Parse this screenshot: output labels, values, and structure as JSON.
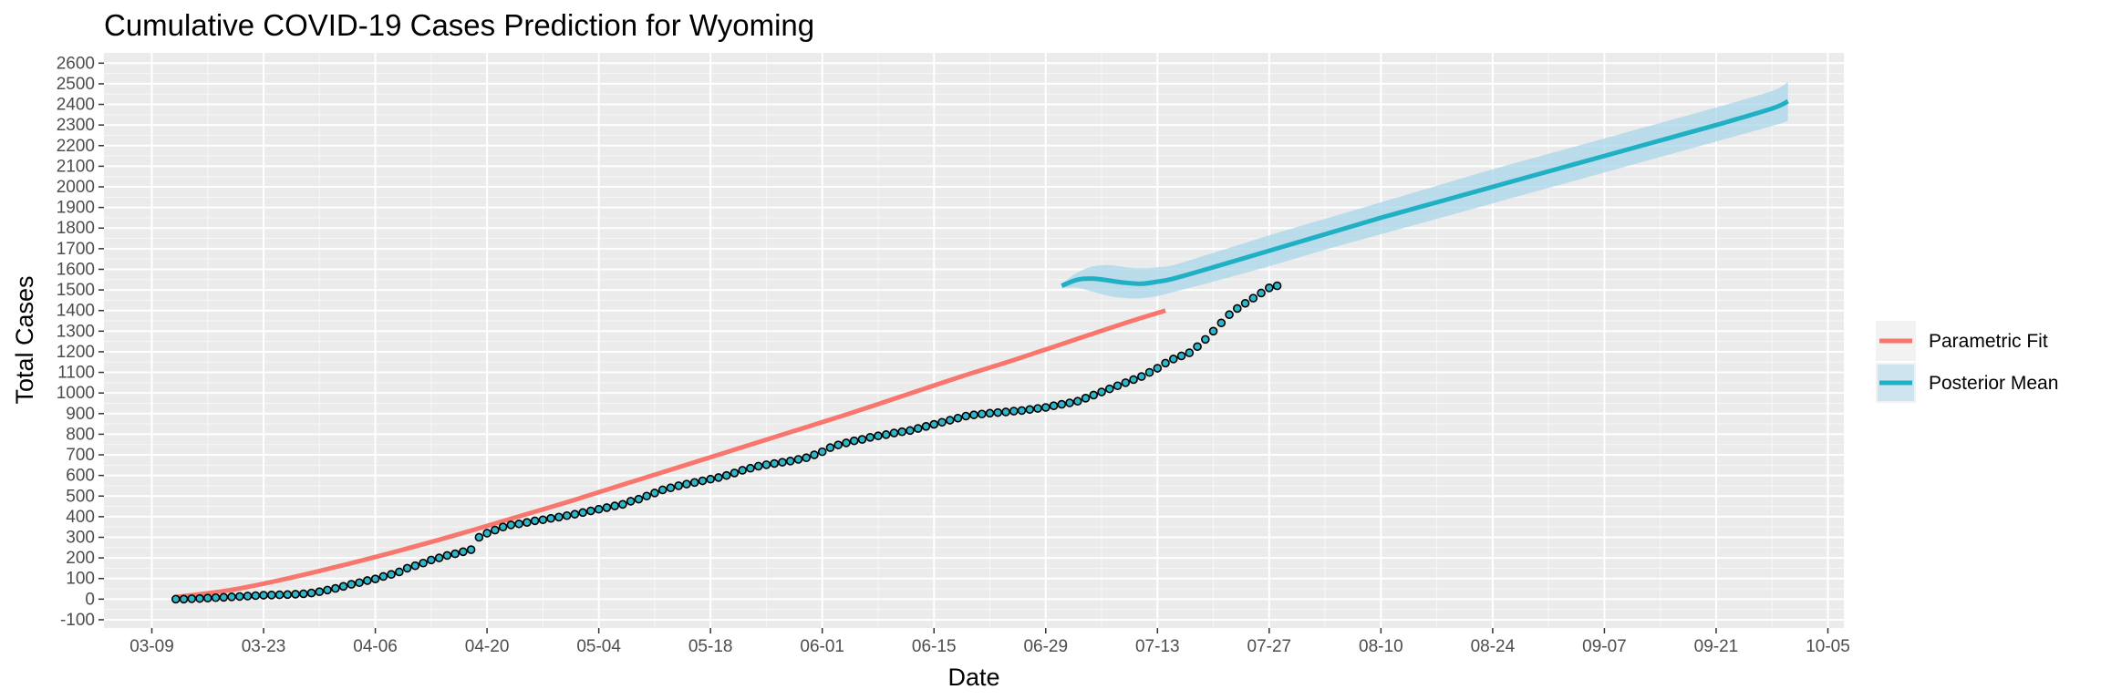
{
  "chart_data": {
    "type": "line",
    "title": "Cumulative COVID-19 Cases Prediction for Wyoming",
    "xlabel": "Date",
    "ylabel": "Total Cases",
    "x_range": [
      "2020-03-03",
      "2020-10-07"
    ],
    "ylim": [
      -140,
      2650
    ],
    "x_ticks": [
      "2020-03-09",
      "2020-03-23",
      "2020-04-06",
      "2020-04-20",
      "2020-05-04",
      "2020-05-18",
      "2020-06-01",
      "2020-06-15",
      "2020-06-29",
      "2020-07-13",
      "2020-07-27",
      "2020-08-10",
      "2020-08-24",
      "2020-09-07",
      "2020-09-21",
      "2020-10-05"
    ],
    "x_tick_labels": [
      "03-09",
      "03-23",
      "04-06",
      "04-20",
      "05-04",
      "05-18",
      "06-01",
      "06-15",
      "06-29",
      "07-13",
      "07-27",
      "08-10",
      "08-24",
      "09-07",
      "09-21",
      "10-05"
    ],
    "y_ticks": [
      -100,
      0,
      100,
      200,
      300,
      400,
      500,
      600,
      700,
      800,
      900,
      1000,
      1100,
      1200,
      1300,
      1400,
      1500,
      1600,
      1700,
      1800,
      1900,
      2000,
      2100,
      2200,
      2300,
      2400,
      2500,
      2600
    ],
    "grid": true,
    "legend_position": "right",
    "colors": {
      "panel": "#ebebeb",
      "grid": "#ffffff",
      "parametric": "#f8766d",
      "posterior": "#1fb0c4",
      "band": "#a9d6ea",
      "point_fill": "#2fb6c8",
      "point_stroke": "#000000"
    },
    "series": [
      {
        "name": "Parametric Fit",
        "x": [
          "2020-03-12",
          "2020-03-19",
          "2020-03-26",
          "2020-04-02",
          "2020-04-09",
          "2020-04-16",
          "2020-04-23",
          "2020-04-30",
          "2020-05-07",
          "2020-05-14",
          "2020-05-21",
          "2020-05-28",
          "2020-06-04",
          "2020-06-11",
          "2020-06-18",
          "2020-06-25",
          "2020-07-02",
          "2020-07-09",
          "2020-07-14"
        ],
        "y": [
          10,
          45,
          100,
          165,
          235,
          310,
          390,
          470,
          555,
          640,
          725,
          810,
          895,
          985,
          1075,
          1160,
          1250,
          1340,
          1400
        ]
      },
      {
        "name": "Posterior Mean",
        "x": [
          "2020-07-01",
          "2020-07-03",
          "2020-07-05",
          "2020-07-07",
          "2020-07-09",
          "2020-07-11",
          "2020-07-13",
          "2020-07-15",
          "2020-07-20",
          "2020-07-27",
          "2020-08-03",
          "2020-08-10",
          "2020-08-17",
          "2020-08-24",
          "2020-08-31",
          "2020-09-07",
          "2020-09-14",
          "2020-09-21",
          "2020-09-28",
          "2020-09-30"
        ],
        "y": [
          1520,
          1550,
          1555,
          1545,
          1535,
          1530,
          1540,
          1555,
          1610,
          1690,
          1770,
          1850,
          1925,
          2000,
          2075,
          2150,
          2225,
          2300,
          2380,
          2415
        ],
        "lower": [
          1510,
          1510,
          1490,
          1470,
          1460,
          1460,
          1470,
          1490,
          1540,
          1615,
          1695,
          1770,
          1845,
          1920,
          1995,
          2070,
          2145,
          2220,
          2295,
          2320
        ],
        "upper": [
          1530,
          1585,
          1615,
          1620,
          1610,
          1605,
          1610,
          1620,
          1680,
          1765,
          1845,
          1925,
          2005,
          2085,
          2160,
          2235,
          2310,
          2385,
          2465,
          2510
        ]
      }
    ],
    "observed": {
      "start": "2020-03-12",
      "values": [
        0,
        0,
        2,
        3,
        5,
        7,
        9,
        11,
        13,
        15,
        17,
        19,
        20,
        21,
        22,
        24,
        26,
        30,
        36,
        44,
        52,
        62,
        72,
        80,
        90,
        98,
        110,
        120,
        132,
        150,
        162,
        175,
        190,
        200,
        212,
        220,
        230,
        240,
        300,
        320,
        335,
        350,
        360,
        365,
        372,
        380,
        385,
        392,
        398,
        405,
        412,
        420,
        428,
        436,
        444,
        452,
        460,
        475,
        485,
        500,
        515,
        530,
        540,
        550,
        558,
        566,
        574,
        582,
        590,
        600,
        612,
        625,
        635,
        645,
        652,
        658,
        664,
        670,
        678,
        686,
        700,
        715,
        735,
        748,
        758,
        768,
        775,
        785,
        792,
        798,
        806,
        812,
        818,
        828,
        838,
        848,
        858,
        868,
        878,
        888,
        894,
        898,
        902,
        905,
        908,
        912,
        915,
        920,
        925,
        930,
        938,
        945,
        952,
        960,
        975,
        990,
        1005,
        1020,
        1035,
        1050,
        1065,
        1080,
        1100,
        1120,
        1145,
        1165,
        1180,
        1195,
        1225,
        1260,
        1300,
        1340,
        1380,
        1410,
        1435,
        1460,
        1485,
        1510,
        1520
      ]
    }
  }
}
